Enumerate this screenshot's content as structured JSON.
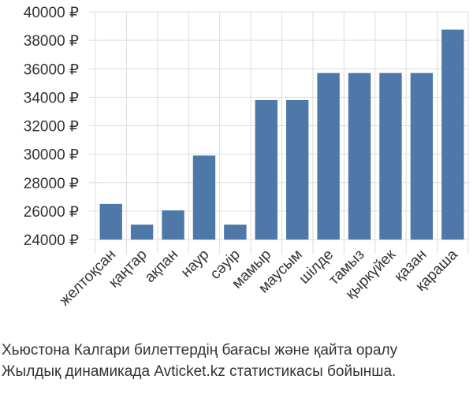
{
  "chart_data": {
    "type": "bar",
    "categories": [
      "желтоқсан",
      "қаңтар",
      "ақпан",
      "наур",
      "сәуір",
      "мамыр",
      "маусым",
      "шілде",
      "тамыз",
      "қыркүйек",
      "қазан",
      "қараша"
    ],
    "values": [
      26500,
      25050,
      26050,
      29900,
      25050,
      33800,
      33800,
      35700,
      35700,
      35700,
      35700,
      38750
    ],
    "ylim": [
      24000,
      40000
    ],
    "yticks": [
      24000,
      26000,
      28000,
      30000,
      32000,
      34000,
      36000,
      38000,
      40000
    ],
    "currency_symbol": "₽",
    "bar_color": "#4e78a8",
    "grid": true
  },
  "caption": {
    "line1": "Хьюстона Калгари билеттердің бағасы және қайта оралу",
    "line2": "Жылдық динамикада Avticket.kz статистикасы бойынша."
  }
}
